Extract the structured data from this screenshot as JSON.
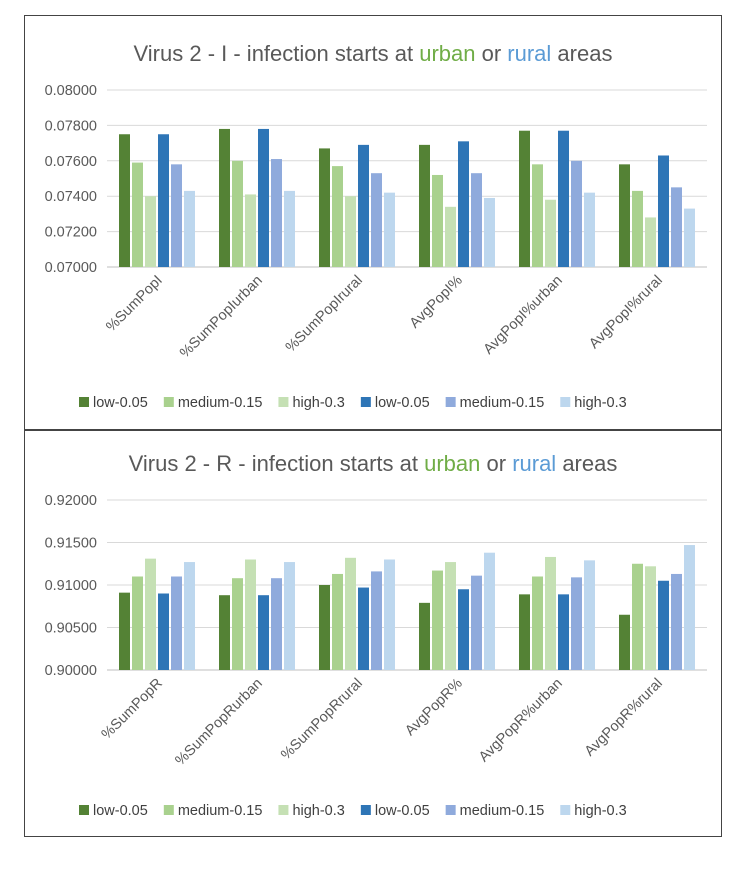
{
  "colors": {
    "series": [
      "#548235",
      "#a9d18e",
      "#c5e0b4",
      "#2e75b6",
      "#8faadc",
      "#bdd7ee"
    ],
    "urban": "#70ad47",
    "rural": "#5b9bd5",
    "title": "#595959",
    "grid": "#d9d9d9"
  },
  "chart_data": [
    {
      "type": "bar",
      "title_parts": [
        "Virus 2 - I - infection starts at ",
        "urban",
        " or ",
        "rural",
        " areas"
      ],
      "categories": [
        "%SumPopI",
        "%SumPopIurban",
        "%SumPopIrural",
        "AvgPopI%",
        "AvgPopI%urban",
        "AvgPopI%rural"
      ],
      "series": [
        {
          "name": "low-0.05",
          "values": [
            0.0775,
            0.0778,
            0.0767,
            0.0769,
            0.0777,
            0.0758
          ]
        },
        {
          "name": "medium-0.15",
          "values": [
            0.0759,
            0.076,
            0.0757,
            0.0752,
            0.0758,
            0.0743
          ]
        },
        {
          "name": "high-0.3",
          "values": [
            0.074,
            0.0741,
            0.074,
            0.0734,
            0.0738,
            0.0728
          ]
        },
        {
          "name": "low-0.05",
          "values": [
            0.0775,
            0.0778,
            0.0769,
            0.0771,
            0.0777,
            0.0763
          ]
        },
        {
          "name": "medium-0.15",
          "values": [
            0.0758,
            0.0761,
            0.0753,
            0.0753,
            0.076,
            0.0745
          ]
        },
        {
          "name": "high-0.3",
          "values": [
            0.0743,
            0.0743,
            0.0742,
            0.0739,
            0.0742,
            0.0733
          ]
        }
      ],
      "yticks": [
        "0.07000",
        "0.07200",
        "0.07400",
        "0.07600",
        "0.07800",
        "0.08000"
      ],
      "ylim": [
        0.07,
        0.08
      ],
      "grid": true,
      "legend": "bottom"
    },
    {
      "type": "bar",
      "title_parts": [
        "Virus 2 - R - infection starts at ",
        "urban",
        " or ",
        "rural",
        " areas"
      ],
      "categories": [
        "%SumPopR",
        "%SumPopRurban",
        "%SumPopRrural",
        "AvgPopR%",
        "AvgPopR%urban",
        "AvgPopR%rural"
      ],
      "series": [
        {
          "name": "low-0.05",
          "values": [
            0.9091,
            0.9088,
            0.91,
            0.9079,
            0.9089,
            0.9065
          ]
        },
        {
          "name": "medium-0.15",
          "values": [
            0.911,
            0.9108,
            0.9113,
            0.9117,
            0.911,
            0.9125
          ]
        },
        {
          "name": "high-0.3",
          "values": [
            0.9131,
            0.913,
            0.9132,
            0.9127,
            0.9133,
            0.9122
          ]
        },
        {
          "name": "low-0.05",
          "values": [
            0.909,
            0.9088,
            0.9097,
            0.9095,
            0.9089,
            0.9105
          ]
        },
        {
          "name": "medium-0.15",
          "values": [
            0.911,
            0.9108,
            0.9116,
            0.9111,
            0.9109,
            0.9113
          ]
        },
        {
          "name": "high-0.3",
          "values": [
            0.9127,
            0.9127,
            0.913,
            0.9138,
            0.9129,
            0.9147
          ]
        }
      ],
      "yticks": [
        "0.90000",
        "0.90500",
        "0.91000",
        "0.91500",
        "0.92000"
      ],
      "ylim": [
        0.9,
        0.92
      ],
      "grid": true,
      "legend": "bottom"
    }
  ]
}
